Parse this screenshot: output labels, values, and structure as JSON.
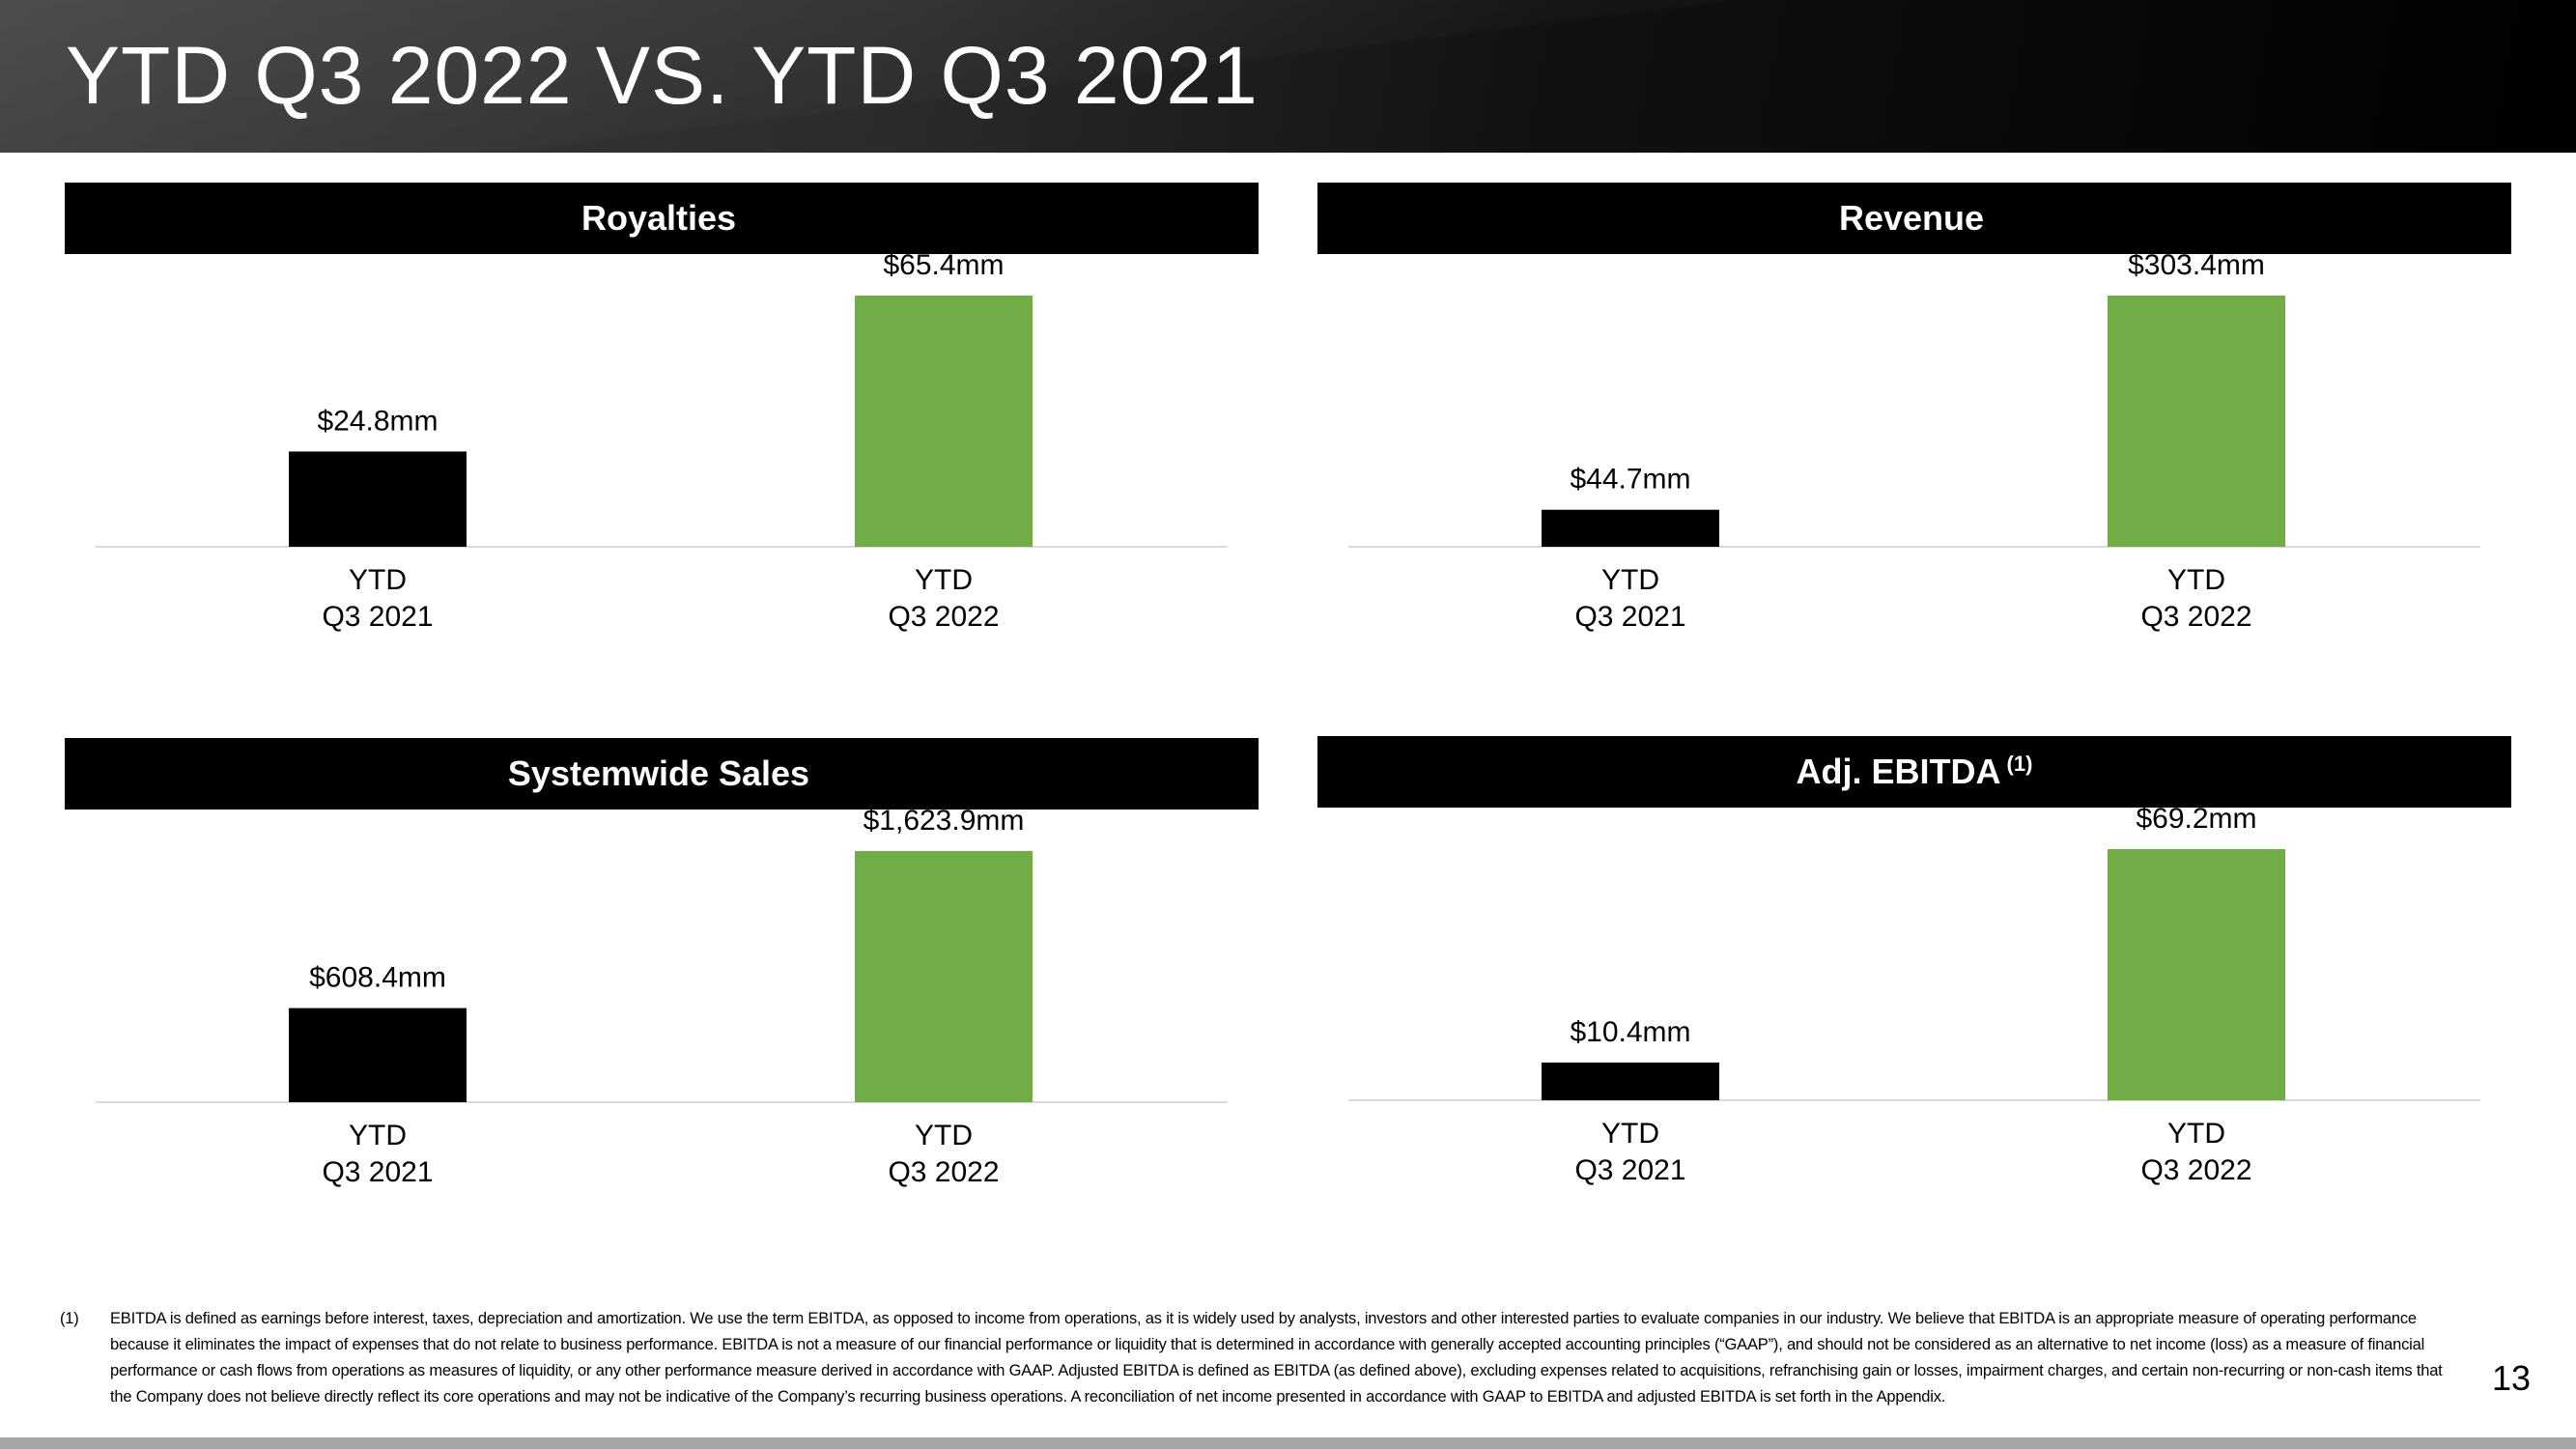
{
  "header": {
    "title": "YTD Q3 2022 VS. YTD Q3 2021"
  },
  "colors": {
    "bar_2021": "#000000",
    "bar_2022": "#70ad47",
    "axis_line": "#d9d9d9"
  },
  "chart_data": [
    {
      "type": "bar",
      "title": "Royalties",
      "title_sup": "",
      "categories": [
        "YTD Q3 2021",
        "YTD Q3 2022"
      ],
      "category_lines": [
        [
          "YTD",
          "Q3 2021"
        ],
        [
          "YTD",
          "Q3 2022"
        ]
      ],
      "values": [
        24.8,
        65.4
      ],
      "value_labels": [
        "$24.8mm",
        "$65.4mm"
      ],
      "units": "$mm"
    },
    {
      "type": "bar",
      "title": "Revenue",
      "title_sup": "",
      "categories": [
        "YTD Q3 2021",
        "YTD Q3 2022"
      ],
      "category_lines": [
        [
          "YTD",
          "Q3 2021"
        ],
        [
          "YTD",
          "Q3 2022"
        ]
      ],
      "values": [
        44.7,
        303.4
      ],
      "value_labels": [
        "$44.7mm",
        "$303.4mm"
      ],
      "units": "$mm"
    },
    {
      "type": "bar",
      "title": "Systemwide Sales",
      "title_sup": "",
      "categories": [
        "YTD Q3 2021",
        "YTD Q3 2022"
      ],
      "category_lines": [
        [
          "YTD",
          "Q3 2021"
        ],
        [
          "YTD",
          "Q3 2022"
        ]
      ],
      "values": [
        608.4,
        1623.9
      ],
      "value_labels": [
        "$608.4mm",
        "$1,623.9mm"
      ],
      "units": "$mm"
    },
    {
      "type": "bar",
      "title": "Adj. EBITDA",
      "title_sup": "(1)",
      "categories": [
        "YTD Q3 2021",
        "YTD Q3 2022"
      ],
      "category_lines": [
        [
          "YTD",
          "Q3 2021"
        ],
        [
          "YTD",
          "Q3 2022"
        ]
      ],
      "values": [
        10.4,
        69.2
      ],
      "value_labels": [
        "$10.4mm",
        "$69.2mm"
      ],
      "units": "$mm"
    }
  ],
  "footnote": {
    "marker": "(1)",
    "text": "EBITDA is defined as earnings before interest, taxes, depreciation and amortization. We use the term EBITDA, as opposed to income from operations, as it is widely used by analysts, investors and other interested parties to evaluate companies in our industry. We believe that EBITDA is an appropriate measure of operating performance because it eliminates the impact of expenses that do not relate to business performance. EBITDA is not a measure of our financial performance or liquidity that is determined in accordance with generally accepted accounting principles (“GAAP”), and should not be considered as an alternative to net income (loss) as a measure of financial performance or cash flows from operations as measures of liquidity, or any other performance measure derived in accordance with GAAP. Adjusted EBITDA is defined as EBITDA (as defined above), excluding expenses related to acquisitions, refranchising gain or losses, impairment charges, and certain non-recurring or non-cash items that the Company does not believe directly reflect its core operations and may not be indicative of the Company’s recurring business operations. A reconciliation of net income presented in accordance with GAAP to EBITDA and adjusted EBITDA is set forth in the Appendix."
  },
  "page_number": "13"
}
